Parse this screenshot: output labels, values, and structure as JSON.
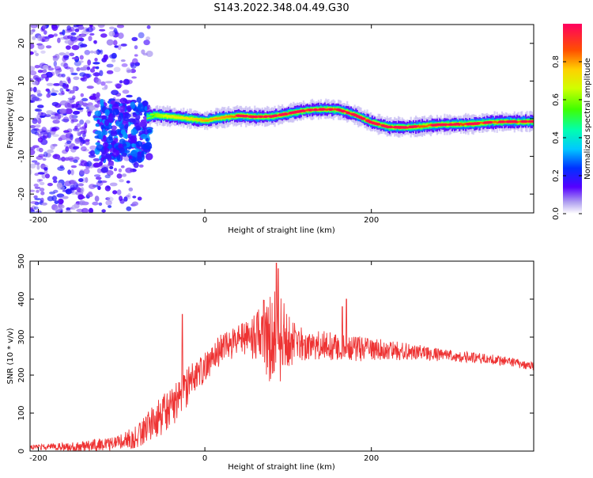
{
  "title": "S143.2022.348.04.49.G30",
  "chart_data": [
    {
      "type": "heatmap",
      "xlabel": "Height of straight line (km)",
      "ylabel": "Frequency (Hz)",
      "xlim": [
        -210,
        395
      ],
      "ylim": [
        -25,
        25
      ],
      "xticks": [
        "-200",
        "0",
        "200"
      ],
      "yticks": [
        "20",
        "10",
        "0",
        "-10",
        "-20"
      ],
      "colorbar": {
        "label": "Normalized spectral amplitude",
        "ticks": [
          "0.0",
          "0.2",
          "0.4",
          "0.6",
          "0.8"
        ],
        "range": [
          0,
          1
        ]
      },
      "ridge": {
        "x": [
          -70,
          -60,
          -40,
          -20,
          0,
          20,
          40,
          60,
          80,
          100,
          120,
          140,
          160,
          180,
          200,
          220,
          240,
          260,
          280,
          300,
          320,
          340,
          360,
          380,
          395
        ],
        "y": [
          0.5,
          1.0,
          0.5,
          0.0,
          -0.5,
          0.3,
          0.8,
          0.5,
          0.6,
          1.4,
          2.2,
          2.5,
          2.4,
          1.0,
          -1.0,
          -2.2,
          -2.3,
          -2.0,
          -1.6,
          -1.5,
          -1.4,
          -1.0,
          -0.8,
          -0.8,
          -0.7
        ],
        "intensity": [
          0.4,
          0.6,
          0.7,
          0.75,
          0.8,
          0.8,
          0.85,
          0.85,
          0.85,
          0.85,
          0.9,
          0.9,
          0.9,
          0.9,
          0.85,
          0.85,
          0.9,
          0.85,
          0.85,
          0.9,
          0.85,
          0.85,
          0.85,
          0.85,
          0.85
        ]
      },
      "noise_region": {
        "x_range": [
          -210,
          -65
        ],
        "y_range": [
          -25,
          25
        ]
      }
    },
    {
      "type": "line",
      "xlabel": "Height of straight line (km)",
      "ylabel": "SNR (10 * v/v)",
      "xlim": [
        -210,
        395
      ],
      "ylim": [
        0,
        500
      ],
      "xticks": [
        "-200",
        "0",
        "200"
      ],
      "yticks": [
        "0",
        "100",
        "200",
        "300",
        "400",
        "500"
      ],
      "color": "#ee3333",
      "envelope": {
        "x": [
          -210,
          -150,
          -110,
          -80,
          -60,
          -40,
          -25,
          0,
          20,
          40,
          60,
          75,
          85,
          95,
          110,
          130,
          160,
          180,
          200,
          240,
          300,
          350,
          395
        ],
        "y": [
          10,
          12,
          20,
          40,
          80,
          110,
          160,
          220,
          270,
          290,
          300,
          310,
          300,
          290,
          285,
          280,
          275,
          270,
          268,
          262,
          250,
          240,
          225
        ]
      },
      "noise_amplitude": {
        "x": [
          -210,
          -100,
          -40,
          0,
          40,
          60,
          75,
          85,
          95,
          110,
          150,
          200,
          300,
          395
        ],
        "y": [
          6,
          20,
          60,
          40,
          40,
          60,
          120,
          140,
          100,
          45,
          40,
          30,
          15,
          12
        ]
      },
      "spikes": [
        {
          "x": -27,
          "y": 360
        },
        {
          "x": 86,
          "y": 495
        },
        {
          "x": 88,
          "y": 480
        },
        {
          "x": 170,
          "y": 400
        },
        {
          "x": 165,
          "y": 380
        }
      ]
    }
  ]
}
